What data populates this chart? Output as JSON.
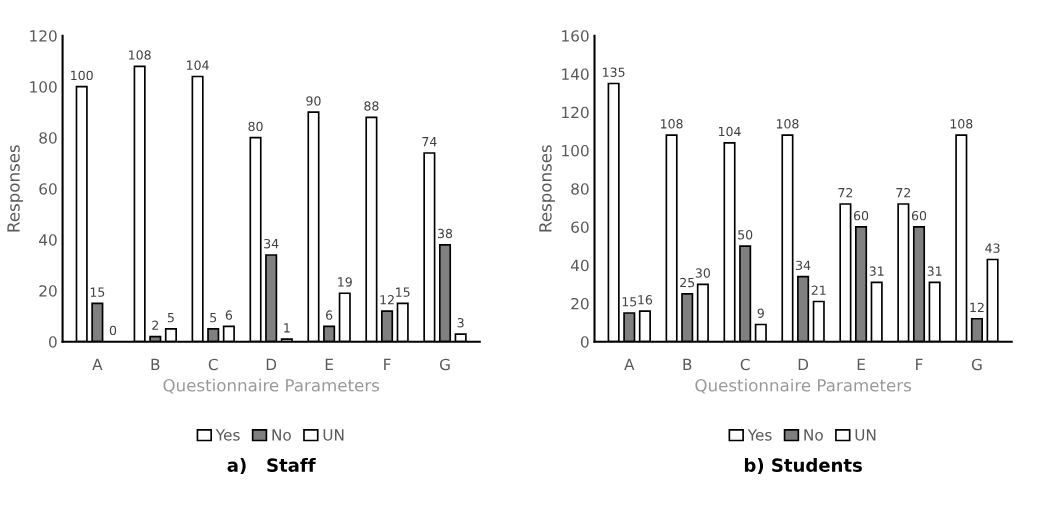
{
  "chart_data": [
    {
      "type": "bar",
      "title": "a)   Staff",
      "xlabel": "Questionnaire Parameters",
      "ylabel": "Responses",
      "categories": [
        "A",
        "B",
        "C",
        "D",
        "E",
        "F",
        "G"
      ],
      "series": [
        {
          "name": "Yes",
          "color": "#ffffff",
          "values": [
            100,
            108,
            104,
            80,
            90,
            88,
            74
          ]
        },
        {
          "name": "No",
          "color": "#808080",
          "values": [
            15,
            2,
            5,
            34,
            6,
            12,
            38
          ]
        },
        {
          "name": "UN",
          "color": "#ffffff",
          "values": [
            0,
            5,
            6,
            1,
            19,
            15,
            3
          ]
        }
      ],
      "ylim": [
        0,
        120
      ],
      "yticks": [
        0,
        20,
        40,
        60,
        80,
        100,
        120
      ],
      "data_labels": true,
      "legend": "bottom",
      "grid": false
    },
    {
      "type": "bar",
      "title": "b) Students",
      "xlabel": "Questionnaire Parameters",
      "ylabel": "Responses",
      "categories": [
        "A",
        "B",
        "C",
        "D",
        "E",
        "F",
        "G"
      ],
      "series": [
        {
          "name": "Yes",
          "color": "#ffffff",
          "values": [
            135,
            108,
            104,
            108,
            72,
            72,
            108
          ]
        },
        {
          "name": "No",
          "color": "#808080",
          "values": [
            15,
            25,
            50,
            34,
            60,
            60,
            12
          ]
        },
        {
          "name": "UN",
          "color": "#ffffff",
          "values": [
            16,
            30,
            9,
            21,
            31,
            31,
            43
          ]
        }
      ],
      "ylim": [
        0,
        160
      ],
      "yticks": [
        0,
        20,
        40,
        60,
        80,
        100,
        120,
        140,
        160
      ],
      "data_labels": true,
      "legend": "bottom",
      "grid": false
    }
  ]
}
